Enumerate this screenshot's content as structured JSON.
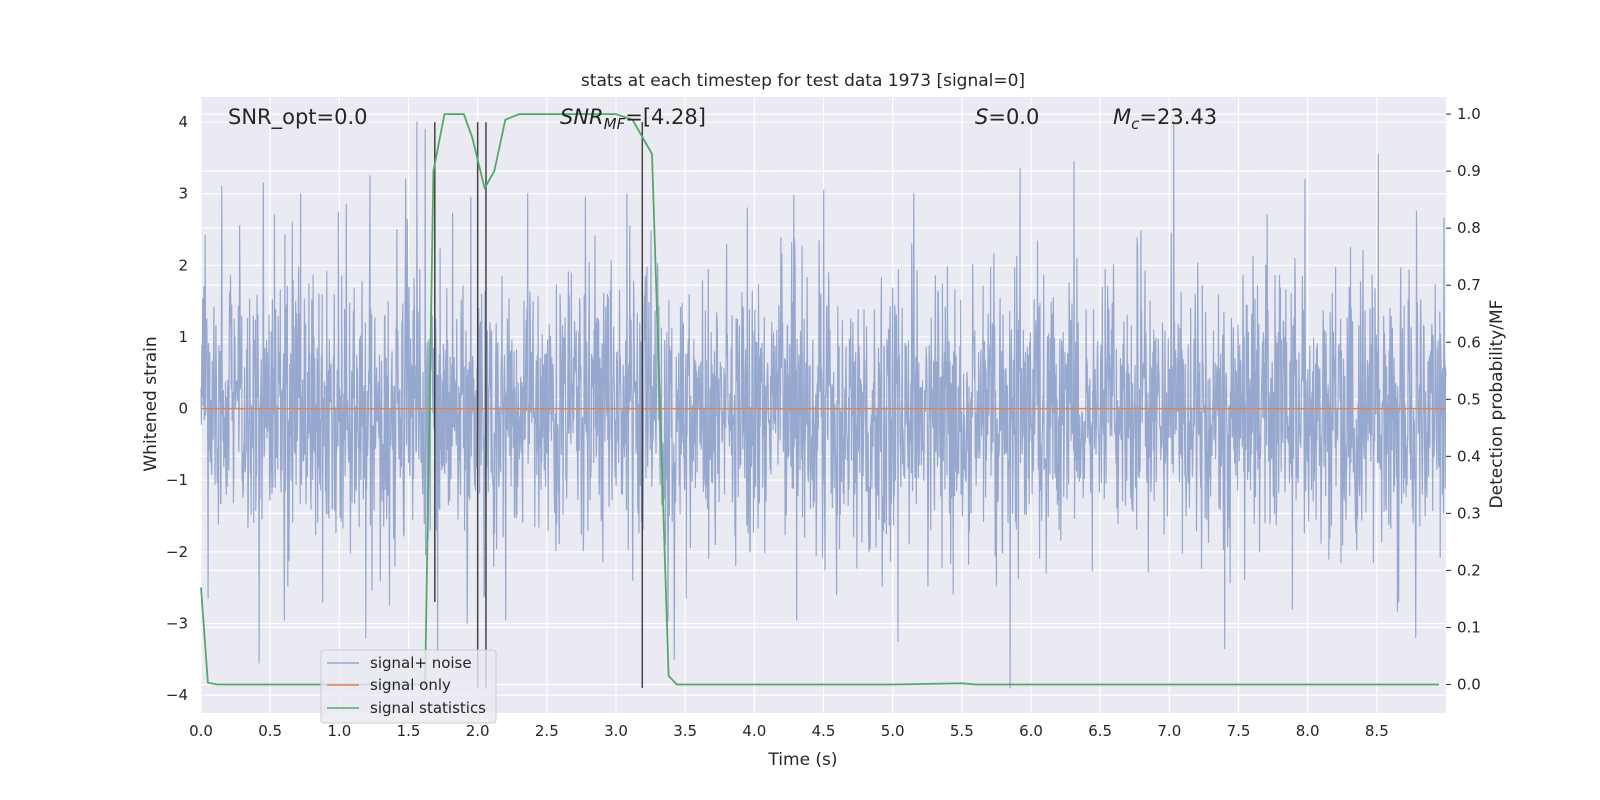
{
  "chart_data": {
    "type": "line",
    "title": "stats at each timestep for test data 1973 [signal=0]",
    "xlabel": "Time (s)",
    "ylabel": "Whitened strain",
    "ylabel_right": "Detection probability/MF",
    "xlim": [
      0.0,
      9.0
    ],
    "ylim": [
      -4.25,
      4.35
    ],
    "ylim_right": [
      -0.05,
      1.03
    ],
    "x_ticks": [
      "0.0",
      "0.5",
      "1.0",
      "1.5",
      "2.0",
      "2.5",
      "3.0",
      "3.5",
      "4.0",
      "4.5",
      "5.0",
      "5.5",
      "6.0",
      "6.5",
      "7.0",
      "7.5",
      "8.0",
      "8.5"
    ],
    "y_ticks": [
      "4",
      "3",
      "2",
      "1",
      "0",
      "−1",
      "−2",
      "−3",
      "−4"
    ],
    "y_right_ticks": [
      "1.0",
      "0.9",
      "0.8",
      "0.7",
      "0.6",
      "0.5",
      "0.4",
      "0.3",
      "0.2",
      "0.1",
      "0.0"
    ],
    "grid": true,
    "legend_placement": "lower-left",
    "annotations": {
      "snr_opt": "SNR_opt=0.0",
      "snr_mf_base": "SNR",
      "snr_mf_sub": "MF",
      "snr_mf_value": "=[4.28]",
      "s_italic": "S",
      "s_value": "=0.0",
      "mc_base": "M",
      "mc_sub": "c",
      "mc_value": "=23.43"
    },
    "series": [
      {
        "name": "signal+ noise",
        "color": "#97a8cf",
        "axis": "left",
        "description_samples": "white noise, std approx 1, peaks near ±4",
        "peaks": [
          {
            "x": 0.02,
            "y": 1.7
          },
          {
            "x": 0.05,
            "y": -2.65
          },
          {
            "x": 0.15,
            "y": 3.1
          },
          {
            "x": 0.28,
            "y": 2.55
          },
          {
            "x": 0.45,
            "y": 3.15
          },
          {
            "x": 0.42,
            "y": -3.55
          },
          {
            "x": 0.66,
            "y": 2.6
          },
          {
            "x": 0.72,
            "y": 3.0
          },
          {
            "x": 0.88,
            "y": -2.7
          },
          {
            "x": 1.05,
            "y": 2.85
          },
          {
            "x": 1.22,
            "y": 3.25
          },
          {
            "x": 1.19,
            "y": -3.2
          },
          {
            "x": 1.48,
            "y": 3.2
          },
          {
            "x": 1.56,
            "y": 4.0
          },
          {
            "x": 1.62,
            "y": 3.9
          },
          {
            "x": 1.71,
            "y": -3.4
          },
          {
            "x": 1.95,
            "y": 2.95
          },
          {
            "x": 2.05,
            "y": -2.6
          },
          {
            "x": 2.78,
            "y": 2.95
          },
          {
            "x": 3.08,
            "y": 3.0
          },
          {
            "x": 3.21,
            "y": 1.85
          },
          {
            "x": 3.42,
            "y": -3.5
          },
          {
            "x": 3.95,
            "y": 2.8
          },
          {
            "x": 4.5,
            "y": 3.05
          },
          {
            "x": 5.04,
            "y": -3.25
          },
          {
            "x": 5.85,
            "y": -3.9
          },
          {
            "x": 5.92,
            "y": 3.35
          },
          {
            "x": 6.31,
            "y": 3.45
          },
          {
            "x": 7.03,
            "y": 4.0
          },
          {
            "x": 7.4,
            "y": -3.35
          },
          {
            "x": 7.98,
            "y": 3.2
          },
          {
            "x": 8.51,
            "y": 3.55
          },
          {
            "x": 8.78,
            "y": -3.2
          }
        ]
      },
      {
        "name": "signal only",
        "color": "#dd8452",
        "axis": "left",
        "x": [
          0.0,
          9.0
        ],
        "y": [
          0.0,
          0.0
        ]
      },
      {
        "name": "signal statistics",
        "color": "#55a868",
        "axis": "right",
        "x": [
          0.0,
          0.05,
          0.12,
          0.5,
          1.0,
          1.5,
          1.62,
          1.68,
          1.76,
          1.9,
          1.96,
          2.05,
          2.12,
          2.2,
          2.3,
          2.6,
          3.0,
          3.12,
          3.26,
          3.38,
          3.44,
          4.0,
          5.0,
          5.5,
          5.6,
          6.0,
          7.0,
          8.0,
          8.95
        ],
        "y": [
          0.17,
          0.003,
          0.0,
          0.0,
          0.0,
          0.0,
          0.0,
          0.9,
          1.0,
          1.0,
          0.96,
          0.87,
          0.9,
          0.99,
          1.0,
          1.0,
          1.0,
          0.99,
          0.93,
          0.015,
          0.0,
          0.0,
          0.0,
          0.002,
          0.0,
          0.0,
          0.0,
          0.0,
          0.0
        ]
      }
    ],
    "vertical_lines": [
      {
        "x": 1.69,
        "y_top": 4.0,
        "y_bottom": -2.7
      },
      {
        "x": 2.0,
        "y_top": 4.0,
        "y_bottom": -3.9
      },
      {
        "x": 2.06,
        "y_top": 4.0,
        "y_bottom": -3.9
      },
      {
        "x": 3.19,
        "y_top": 4.0,
        "y_bottom": -3.9
      }
    ]
  }
}
